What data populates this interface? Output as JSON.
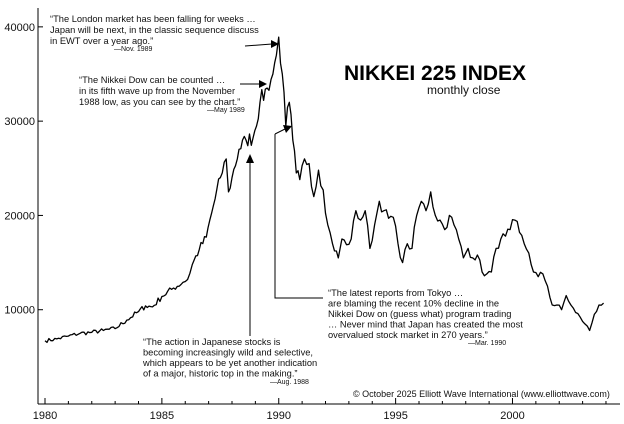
{
  "chart_data": {
    "type": "line",
    "title": "NIKKEI 225 INDEX",
    "subtitle": "monthly close",
    "xlabel": "",
    "ylabel": "",
    "xlim": [
      1979.7,
      2004.6
    ],
    "ylim": [
      0,
      42000
    ],
    "x_ticks": [
      1980,
      1985,
      1990,
      1995,
      2000
    ],
    "y_ticks": [
      10000,
      20000,
      30000,
      40000
    ],
    "copyright": "© October 2025 Elliott Wave International (www.elliottwave.com)",
    "series": [
      {
        "name": "",
        "x": [
          1980.0,
          1980.5,
          1981.0,
          1981.5,
          1982.0,
          1982.5,
          1983.0,
          1983.5,
          1984.0,
          1984.3,
          1984.6,
          1985.0,
          1985.5,
          1985.9,
          1986.1,
          1986.3,
          1986.6,
          1986.9,
          1987.2,
          1987.5,
          1987.75,
          1987.85,
          1988.0,
          1988.3,
          1988.6,
          1988.9,
          1989.2,
          1989.5,
          1989.75,
          1989.9,
          1990.0,
          1990.15,
          1990.3,
          1990.45,
          1990.6,
          1990.75,
          1990.9,
          1991.1,
          1991.3,
          1991.5,
          1991.7,
          1991.9,
          1992.1,
          1992.3,
          1992.55,
          1992.7,
          1992.9,
          1993.1,
          1993.3,
          1993.5,
          1993.7,
          1993.9,
          1994.1,
          1994.3,
          1994.5,
          1994.7,
          1994.9,
          1995.1,
          1995.3,
          1995.5,
          1995.7,
          1995.9,
          1996.1,
          1996.3,
          1996.5,
          1996.7,
          1996.9,
          1997.1,
          1997.3,
          1997.5,
          1997.7,
          1997.9,
          1998.1,
          1998.3,
          1998.5,
          1998.7,
          1998.9,
          1999.1,
          1999.3,
          1999.5,
          1999.7,
          1999.9,
          2000.1,
          2000.3,
          2000.5,
          2000.7,
          2000.9,
          2001.1,
          2001.3,
          2001.5,
          2001.7,
          2001.9,
          2002.1,
          2002.3,
          2002.5,
          2002.7,
          2002.9,
          2003.1,
          2003.3,
          2003.5,
          2003.7,
          2003.9
        ],
        "values": [
          6700,
          6900,
          7200,
          7500,
          7600,
          7800,
          8000,
          8900,
          9800,
          10400,
          10300,
          11400,
          12300,
          12900,
          13200,
          14800,
          16400,
          17700,
          21000,
          24000,
          26000,
          22500,
          24000,
          27000,
          28000,
          28200,
          32000,
          33500,
          35000,
          37000,
          38900,
          35000,
          29500,
          32000,
          28000,
          24500,
          23800,
          26000,
          25500,
          22000,
          24800,
          22700,
          19000,
          17000,
          15500,
          17500,
          16900,
          17500,
          20500,
          19500,
          20500,
          16500,
          19000,
          21500,
          20500,
          19700,
          19800,
          17000,
          15000,
          17000,
          16500,
          20000,
          21500,
          20500,
          22500,
          20000,
          19500,
          18500,
          20000,
          19000,
          17500,
          15500,
          16500,
          15500,
          15800,
          14000,
          13800,
          14000,
          16500,
          17500,
          17800,
          18500,
          19500,
          18200,
          17000,
          16000,
          14000,
          13500,
          13800,
          12500,
          10500,
          10500,
          10000,
          11500,
          10500,
          9700,
          9200,
          8500,
          7800,
          9500,
          10500,
          10700
        ]
      }
    ],
    "annotations": [
      {
        "id": "london",
        "lines": [
          "“The London market has been falling for weeks …",
          "Japan will be next, in the classic sequence discuss",
          "in EWT over a year ago.”"
        ],
        "attribution": "—Nov. 1989"
      },
      {
        "id": "nikkei-dow",
        "lines": [
          "“The Nikkei Dow can be counted …",
          "in its fifth wave up from the November",
          "1988 low, as you can see by the chart.”"
        ],
        "attribution": "—May 1989"
      },
      {
        "id": "tokyo",
        "lines": [
          "“The latest reports from Tokyo …",
          "are blaming the recent 10% decline in the",
          "Nikkei Dow on (guess what) program trading",
          "… Never mind that Japan has created the most",
          "overvalued stock market in 270 years.”"
        ],
        "attribution": "—Mar. 1990"
      },
      {
        "id": "japanese-stocks",
        "lines": [
          "“The action in Japanese stocks is",
          "becoming increasingly wild and selective,",
          "which appears to be yet another indication",
          "of a major, historic top in the making.”"
        ],
        "attribution": "—Aug. 1988"
      }
    ]
  }
}
